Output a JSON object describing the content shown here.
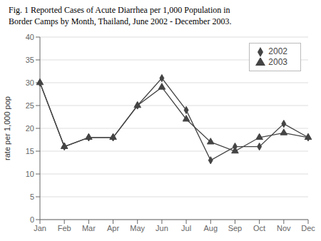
{
  "chart_data": {
    "type": "line",
    "title": "Fig. 1  Reported Cases of Acute Diarrhea per 1,000 Population in\nBorder Camps by Month, Thailand, June 2002 - December 2003.",
    "y_label": "rate per 1,000 pop",
    "categories": [
      "Jan",
      "Feb",
      "Mar",
      "Apr",
      "May",
      "Jun",
      "Jul",
      "Aug",
      "Sep",
      "Oct",
      "Nov",
      "Dec"
    ],
    "series": [
      {
        "name": "2002",
        "color": "#444444",
        "marker": "diamond",
        "values": [
          30,
          16,
          18,
          18,
          25,
          31,
          24,
          13,
          16,
          16,
          21,
          18
        ]
      },
      {
        "name": "2003",
        "color": "#444444",
        "marker": "triangle",
        "values": [
          30,
          16,
          18,
          18,
          25,
          29,
          22,
          17,
          15,
          18,
          19,
          18
        ]
      }
    ],
    "ylim": [
      0,
      40
    ],
    "yticks": [
      0,
      5,
      10,
      15,
      20,
      25,
      30,
      35,
      40
    ],
    "grid": true,
    "legend": "upper right"
  }
}
